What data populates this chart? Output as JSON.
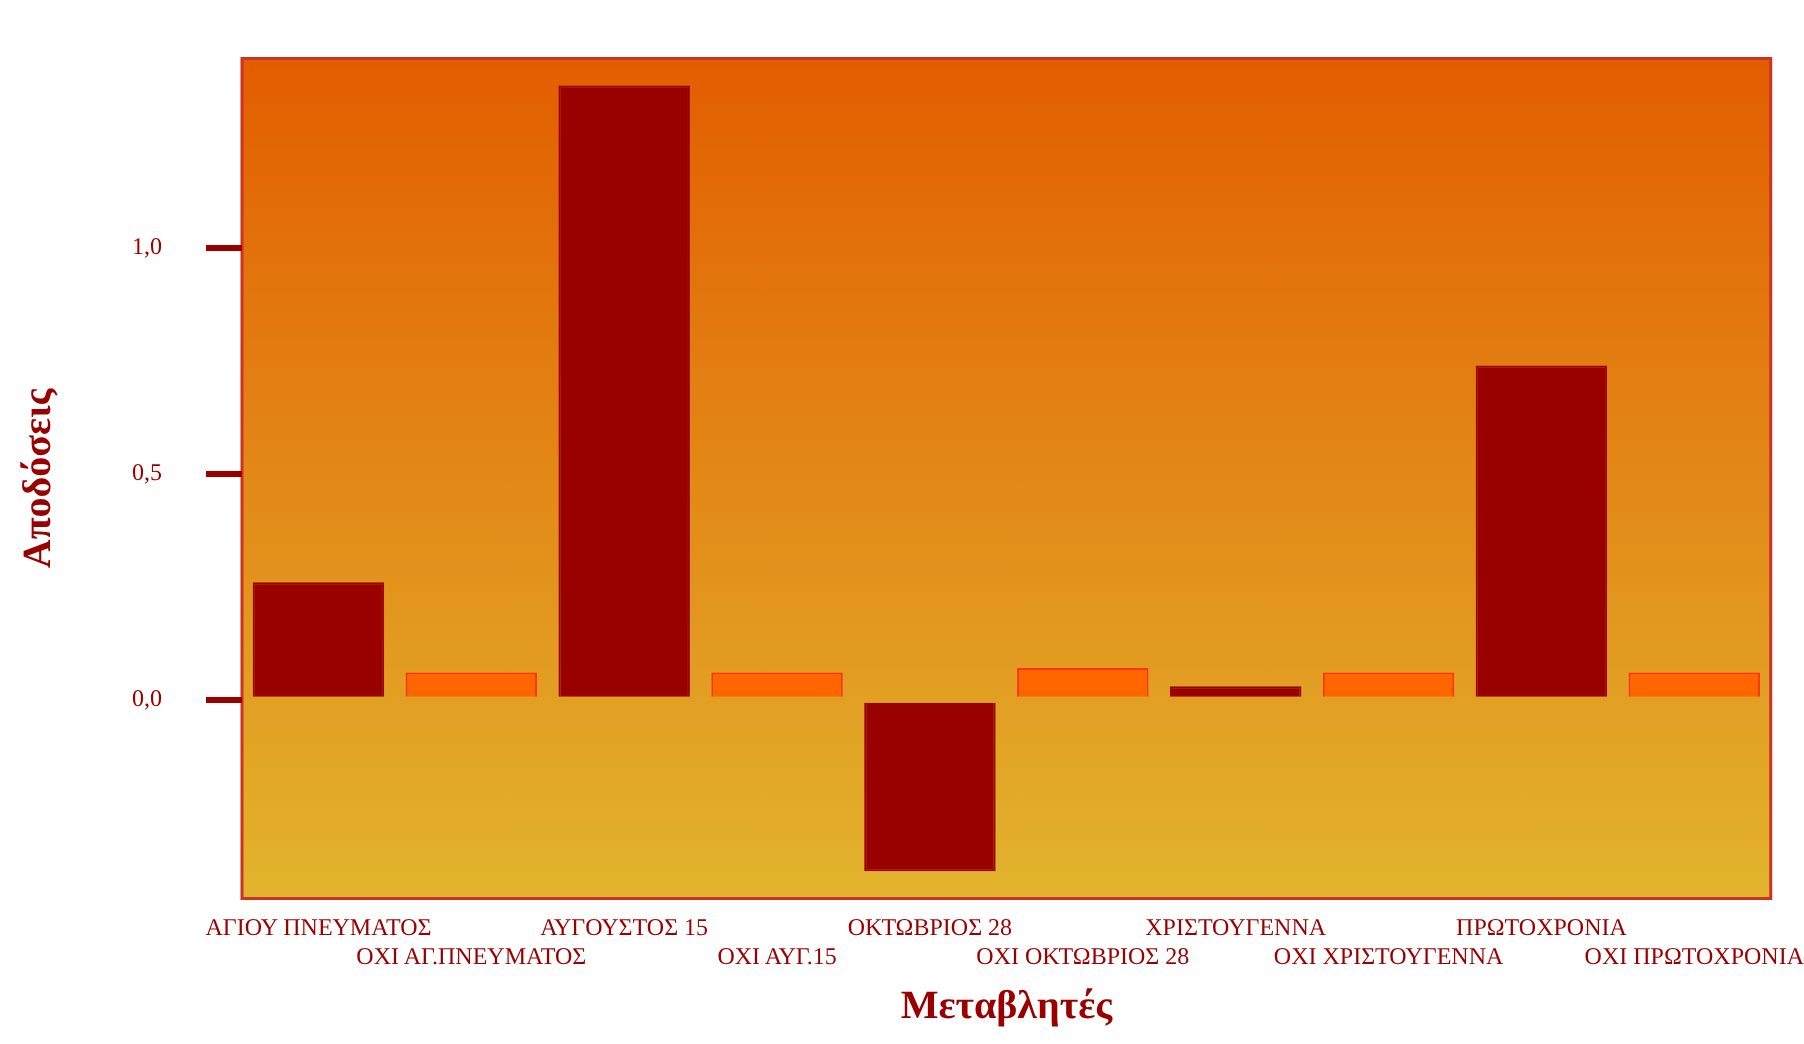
{
  "chart_data": {
    "type": "bar",
    "xlabel": "Μεταβλητές",
    "ylabel": "Αποδόσεις",
    "categories": [
      "ΑΓΙΟΥ ΠΝΕΥΜΑΤΟΣ",
      "ΟΧΙ ΑΓ.ΠΝΕΥΜΑΤΟΣ",
      "ΑΥΓΟΥΣΤΟΣ 15",
      "ΟΧΙ ΑΥΓ.15",
      "ΟΚΤΩΒΡΙΟΣ 28",
      "ΟΧΙ ΟΚΤΩΒΡΙΟΣ 28",
      "ΧΡΙΣΤΟΥΓΕΝΝΑ",
      "ΟΧΙ ΧΡΙΣΤΟΥΓΕΝΝΑ",
      "ΠΡΩΤΟΧΡΟΝΙΑ",
      "ΟΧΙ ΠΡΩΤΟΧΡΟΝΙΑ"
    ],
    "values": [
      0.26,
      0.06,
      1.36,
      0.06,
      -0.38,
      0.07,
      0.03,
      0.06,
      0.74,
      0.06
    ],
    "colors": [
      "#990000",
      "#ff6600",
      "#990000",
      "#ff6600",
      "#990000",
      "#ff6600",
      "#990000",
      "#ff6600",
      "#990000",
      "#ff6600"
    ],
    "ylim": [
      -0.44,
      1.42
    ],
    "yticks": [
      {
        "value": 0,
        "label": "0,0"
      },
      {
        "value": 0.5,
        "label": "0,5"
      },
      {
        "value": 1,
        "label": "1,0"
      }
    ],
    "grid": false,
    "legend": false
  }
}
